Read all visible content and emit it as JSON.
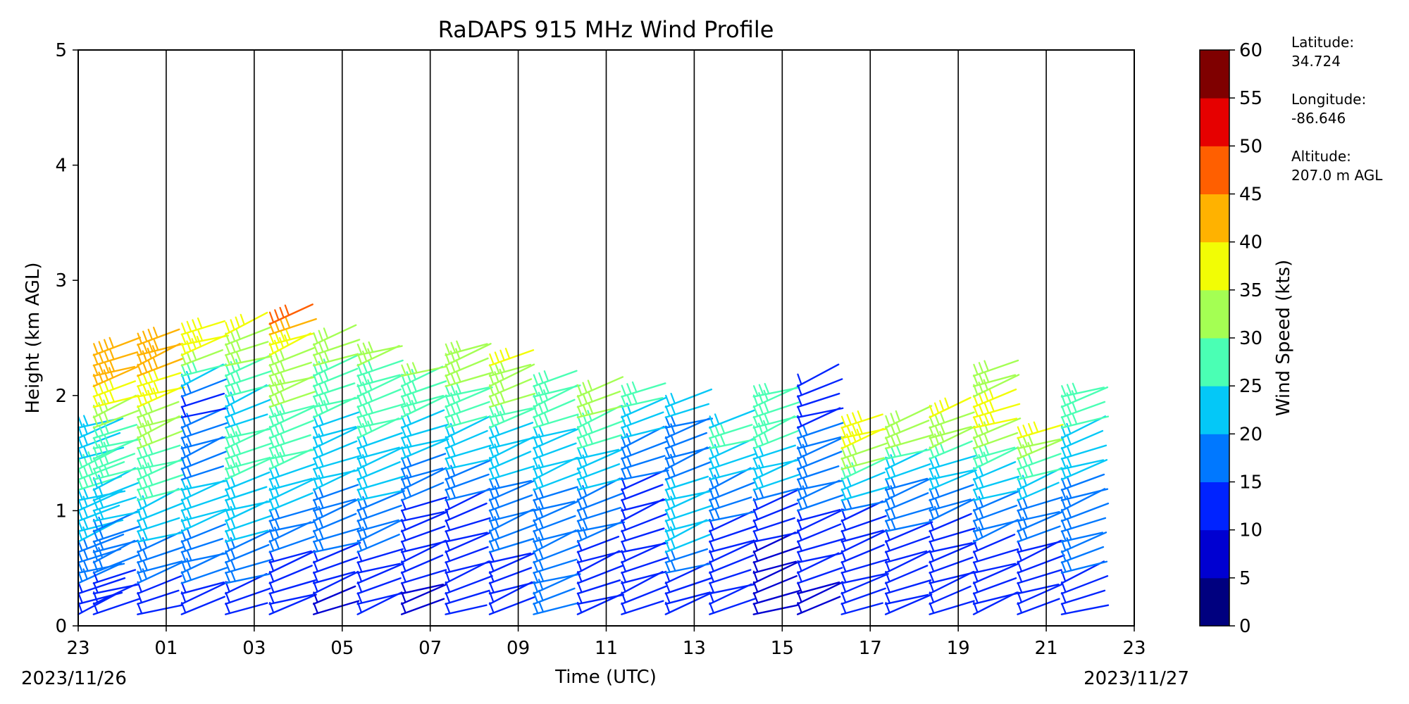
{
  "chart_data": {
    "type": "wind-barb profile",
    "title": "RaDAPS 915 MHz Wind Profile",
    "xlabel": "Time (UTC)",
    "ylabel": "Height (km AGL)",
    "x_ticks": [
      "23",
      "01",
      "03",
      "05",
      "07",
      "09",
      "11",
      "13",
      "15",
      "17",
      "19",
      "21",
      "23"
    ],
    "x_tick_hours": [
      0,
      2,
      4,
      6,
      8,
      10,
      12,
      14,
      16,
      18,
      20,
      22,
      24
    ],
    "xlim_hours": [
      0,
      24
    ],
    "date_start": "2023/11/26",
    "date_end": "2023/11/27",
    "y_ticks": [
      0,
      1,
      2,
      3,
      4,
      5
    ],
    "ylim": [
      0,
      5
    ],
    "grid": "vertical lines at each x tick",
    "colorbar": {
      "label": "Wind Speed (kts)",
      "ticks": [
        0,
        5,
        10,
        15,
        20,
        25,
        30,
        35,
        40,
        45,
        50,
        55,
        60
      ],
      "colors": [
        "#00007f",
        "#0000d1",
        "#0023ff",
        "#0078ff",
        "#04c8f7",
        "#4affb4",
        "#a4ff53",
        "#f2fd05",
        "#ffb200",
        "#ff5f00",
        "#e60000",
        "#7f0000"
      ]
    },
    "series": [
      {
        "time": 0.0,
        "top": 1.8,
        "speeds": [
          [
            0.0,
            12
          ],
          [
            0.4,
            16
          ],
          [
            0.8,
            22
          ],
          [
            1.2,
            26
          ],
          [
            1.6,
            24
          ],
          [
            1.8,
            22
          ]
        ]
      },
      {
        "time": 0.35,
        "top": 2.35,
        "speeds": [
          [
            0.0,
            10
          ],
          [
            0.5,
            16
          ],
          [
            1.0,
            22
          ],
          [
            1.5,
            28
          ],
          [
            1.8,
            32
          ],
          [
            2.05,
            40
          ],
          [
            2.35,
            44
          ]
        ]
      },
      {
        "time": 1.35,
        "top": 2.5,
        "speeds": [
          [
            0.1,
            12
          ],
          [
            0.5,
            18
          ],
          [
            1.0,
            24
          ],
          [
            1.5,
            30
          ],
          [
            1.9,
            36
          ],
          [
            2.25,
            43
          ],
          [
            2.5,
            44
          ]
        ]
      },
      {
        "time": 2.35,
        "top": 2.55,
        "speeds": [
          [
            0.2,
            14
          ],
          [
            0.6,
            18
          ],
          [
            1.0,
            22
          ],
          [
            1.4,
            18
          ],
          [
            1.9,
            14
          ],
          [
            2.3,
            36
          ],
          [
            2.55,
            40
          ]
        ]
      },
      {
        "time": 3.35,
        "top": 2.6,
        "speeds": [
          [
            0.3,
            14
          ],
          [
            0.7,
            20
          ],
          [
            1.0,
            24
          ],
          [
            1.5,
            26
          ],
          [
            1.9,
            24
          ],
          [
            2.3,
            32
          ],
          [
            2.6,
            36
          ]
        ]
      },
      {
        "time": 4.35,
        "top": 2.65,
        "speeds": [
          [
            0.3,
            10
          ],
          [
            0.7,
            16
          ],
          [
            1.1,
            22
          ],
          [
            1.5,
            28
          ],
          [
            1.9,
            30
          ],
          [
            2.3,
            34
          ],
          [
            2.65,
            48
          ]
        ]
      },
      {
        "time": 5.35,
        "top": 2.45,
        "speeds": [
          [
            0.1,
            8
          ],
          [
            0.5,
            14
          ],
          [
            0.9,
            18
          ],
          [
            1.4,
            22
          ],
          [
            1.9,
            26
          ],
          [
            2.2,
            30
          ],
          [
            2.45,
            34
          ]
        ]
      },
      {
        "time": 6.35,
        "top": 2.35,
        "speeds": [
          [
            0.1,
            10
          ],
          [
            0.5,
            14
          ],
          [
            1.0,
            20
          ],
          [
            1.5,
            24
          ],
          [
            2.0,
            28
          ],
          [
            2.35,
            32
          ]
        ]
      },
      {
        "time": 7.35,
        "top": 2.25,
        "speeds": [
          [
            0.1,
            8
          ],
          [
            0.5,
            12
          ],
          [
            1.0,
            14
          ],
          [
            1.5,
            22
          ],
          [
            2.0,
            28
          ],
          [
            2.25,
            32
          ]
        ]
      },
      {
        "time": 8.35,
        "top": 2.35,
        "speeds": [
          [
            0.3,
            10
          ],
          [
            0.7,
            12
          ],
          [
            1.1,
            16
          ],
          [
            1.6,
            24
          ],
          [
            2.0,
            30
          ],
          [
            2.35,
            34
          ]
        ]
      },
      {
        "time": 9.35,
        "top": 2.3,
        "speeds": [
          [
            0.3,
            12
          ],
          [
            0.7,
            16
          ],
          [
            1.1,
            18
          ],
          [
            1.6,
            24
          ],
          [
            2.0,
            32
          ],
          [
            2.3,
            36
          ]
        ]
      },
      {
        "time": 10.35,
        "top": 2.1,
        "speeds": [
          [
            0.3,
            16
          ],
          [
            0.7,
            18
          ],
          [
            1.1,
            20
          ],
          [
            1.5,
            24
          ],
          [
            1.8,
            26
          ],
          [
            2.1,
            28
          ]
        ]
      },
      {
        "time": 11.35,
        "top": 2.05,
        "speeds": [
          [
            0.2,
            12
          ],
          [
            0.6,
            14
          ],
          [
            1.0,
            18
          ],
          [
            1.4,
            24
          ],
          [
            1.8,
            30
          ],
          [
            2.05,
            32
          ]
        ]
      },
      {
        "time": 12.35,
        "top": 2.05,
        "speeds": [
          [
            0.3,
            10
          ],
          [
            0.7,
            14
          ],
          [
            1.1,
            14
          ],
          [
            1.5,
            18
          ],
          [
            1.8,
            24
          ],
          [
            2.05,
            30
          ]
        ]
      },
      {
        "time": 13.35,
        "top": 1.95,
        "speeds": [
          [
            0.3,
            10
          ],
          [
            0.6,
            20
          ],
          [
            1.0,
            22
          ],
          [
            1.4,
            18
          ],
          [
            1.75,
            20
          ],
          [
            1.95,
            20
          ]
        ]
      },
      {
        "time": 14.35,
        "top": 1.8,
        "speeds": [
          [
            0.2,
            10
          ],
          [
            0.6,
            12
          ],
          [
            1.0,
            16
          ],
          [
            1.35,
            22
          ],
          [
            1.6,
            26
          ],
          [
            1.8,
            24
          ]
        ]
      },
      {
        "time": 15.35,
        "top": 2.0,
        "speeds": [
          [
            0.1,
            6
          ],
          [
            0.5,
            8
          ],
          [
            0.9,
            12
          ],
          [
            1.3,
            24
          ],
          [
            1.7,
            26
          ],
          [
            2.0,
            28
          ]
        ]
      },
      {
        "time": 16.35,
        "top": 2.1,
        "speeds": [
          [
            0.2,
            8
          ],
          [
            0.5,
            12
          ],
          [
            0.9,
            14
          ],
          [
            1.3,
            20
          ],
          [
            1.7,
            14
          ],
          [
            2.1,
            12
          ]
        ]
      },
      {
        "time": 17.35,
        "top": 1.75,
        "speeds": [
          [
            0.2,
            10
          ],
          [
            0.5,
            12
          ],
          [
            0.9,
            14
          ],
          [
            1.2,
            24
          ],
          [
            1.5,
            36
          ],
          [
            1.75,
            36
          ]
        ]
      },
      {
        "time": 18.35,
        "top": 1.8,
        "speeds": [
          [
            0.2,
            12
          ],
          [
            0.6,
            14
          ],
          [
            1.0,
            16
          ],
          [
            1.3,
            22
          ],
          [
            1.6,
            34
          ],
          [
            1.8,
            34
          ]
        ]
      },
      {
        "time": 19.35,
        "top": 1.85,
        "speeds": [
          [
            0.2,
            12
          ],
          [
            0.6,
            12
          ],
          [
            1.0,
            16
          ],
          [
            1.35,
            24
          ],
          [
            1.65,
            34
          ],
          [
            1.85,
            36
          ]
        ]
      },
      {
        "time": 20.35,
        "top": 2.2,
        "speeds": [
          [
            0.2,
            12
          ],
          [
            0.6,
            14
          ],
          [
            1.0,
            18
          ],
          [
            1.4,
            28
          ],
          [
            1.8,
            38
          ],
          [
            2.2,
            30
          ]
        ]
      },
      {
        "time": 21.35,
        "top": 1.7,
        "speeds": [
          [
            0.2,
            12
          ],
          [
            0.6,
            14
          ],
          [
            1.0,
            18
          ],
          [
            1.3,
            26
          ],
          [
            1.55,
            34
          ],
          [
            1.7,
            38
          ]
        ]
      },
      {
        "time": 22.35,
        "top": 2.05,
        "speeds": [
          [
            0.2,
            14
          ],
          [
            0.6,
            16
          ],
          [
            1.0,
            18
          ],
          [
            1.4,
            22
          ],
          [
            1.8,
            26
          ],
          [
            2.05,
            30
          ]
        ]
      }
    ]
  },
  "station": {
    "latitude_label": "Latitude:",
    "latitude": "34.724",
    "longitude_label": "Longitude:",
    "longitude": "-86.646",
    "altitude_label": "Altitude:",
    "altitude": "207.0 m AGL"
  }
}
